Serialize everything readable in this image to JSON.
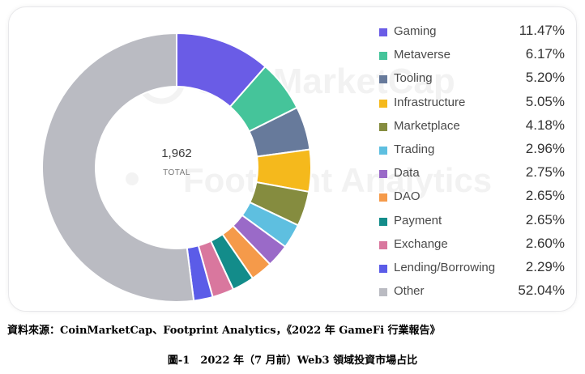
{
  "chart_data": {
    "type": "pie",
    "donut": true,
    "center": {
      "value": "1,962",
      "label": "TOTAL"
    },
    "categories": [
      "Gaming",
      "Metaverse",
      "Tooling",
      "Infrastructure",
      "Marketplace",
      "Trading",
      "Data",
      "DAO",
      "Payment",
      "Exchange",
      "Lending/Borrowing",
      "Other"
    ],
    "values": [
      11.47,
      6.17,
      5.2,
      5.05,
      4.18,
      2.96,
      2.75,
      2.65,
      2.65,
      2.6,
      2.29,
      52.04
    ],
    "labels": [
      "11.47%",
      "6.17%",
      "5.20%",
      "5.05%",
      "4.18%",
      "2.96%",
      "2.75%",
      "2.65%",
      "2.65%",
      "2.60%",
      "2.29%",
      "52.04%"
    ],
    "colors": [
      "#6a5ce6",
      "#45c49a",
      "#677a9b",
      "#f5b91c",
      "#858c3f",
      "#5ebfe0",
      "#9a6ac8",
      "#f59a4a",
      "#138c8a",
      "#d9779e",
      "#5b5ce8",
      "#babbc2"
    ],
    "legend_position": "right",
    "title": "",
    "watermarks": [
      "CoinMarketCap",
      "Footprint Analytics"
    ]
  },
  "source_text": "資料來源：CoinMarketCap、Footprint Analytics，《2022 年 GameFi 行業報告》",
  "caption": "圖-1　2022 年（7 月前）Web3 領域投資市場占比"
}
